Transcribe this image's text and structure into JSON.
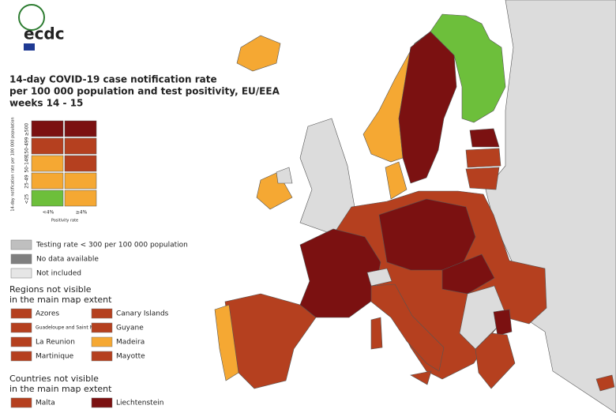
{
  "header": {
    "logo": "ecdc",
    "title_lines": [
      "14-day COVID-19 case notification rate",
      "per 100 000 population and test positivity, EU/EEA",
      "weeks 14 - 15"
    ]
  },
  "matrix": {
    "y_label": "14-day notification rate per 100 000 population",
    "x_label": "Positivity rate",
    "rows": [
      "≥500",
      "150-499",
      "50-149",
      "25-49",
      "<25"
    ],
    "columns": [
      "<4%",
      "≥4%"
    ],
    "colors": [
      [
        "#7b1111",
        "#7b1111"
      ],
      [
        "#b5401f",
        "#b5401f"
      ],
      [
        "#f5a833",
        "#b5401f"
      ],
      [
        "#f5a833",
        "#f5a833"
      ],
      [
        "#6dbf3b",
        "#f5a833"
      ]
    ]
  },
  "legend": [
    {
      "label": "Testing rate < 300 per 100 000 population",
      "color": "#bfbfbf"
    },
    {
      "label": "No data available",
      "color": "#7f7f7f"
    },
    {
      "label": "Not included",
      "color": "#e6e6e6"
    }
  ],
  "regions": {
    "title_lines": [
      "Regions not visible",
      "in the main map extent"
    ],
    "items": [
      {
        "label": "Azores",
        "color": "#b5401f"
      },
      {
        "label": "Canary Islands",
        "color": "#b5401f"
      },
      {
        "label": "Guadeloupe and Saint Martin",
        "color": "#b5401f"
      },
      {
        "label": "Guyane",
        "color": "#b5401f"
      },
      {
        "label": "La Reunion",
        "color": "#b5401f"
      },
      {
        "label": "Madeira",
        "color": "#f5a833"
      },
      {
        "label": "Martinique",
        "color": "#b5401f"
      },
      {
        "label": "Mayotte",
        "color": "#b5401f"
      }
    ]
  },
  "countries": {
    "title_lines": [
      "Countries not visible",
      "in the main map extent"
    ],
    "items": [
      {
        "label": "Malta",
        "color": "#b5401f"
      },
      {
        "label": "Liechtenstein",
        "color": "#7b1111"
      }
    ]
  }
}
